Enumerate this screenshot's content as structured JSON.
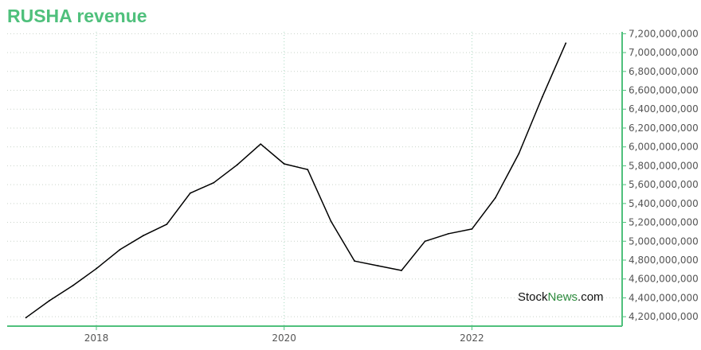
{
  "title": "RUSHA revenue",
  "watermark": {
    "part1": "Stock",
    "part2": "News",
    "part3": ".com"
  },
  "colors": {
    "accent": "#4fc07c",
    "line": "#000000",
    "grid": "#c8d8c8"
  },
  "chart_data": {
    "type": "line",
    "title": "RUSHA revenue",
    "xlabel": "",
    "ylabel": "",
    "grid": true,
    "y_axis_side": "right",
    "xlim": [
      2017.05,
      2023.6
    ],
    "ylim": [
      4100000000,
      7220000000
    ],
    "x_ticks": [
      {
        "value": 2018,
        "label": "2018"
      },
      {
        "value": 2020,
        "label": "2020"
      },
      {
        "value": 2022,
        "label": "2022"
      }
    ],
    "y_ticks": [
      {
        "value": 4200000000,
        "label": "4,200,000,000"
      },
      {
        "value": 4400000000,
        "label": "4,400,000,000"
      },
      {
        "value": 4600000000,
        "label": "4,600,000,000"
      },
      {
        "value": 4800000000,
        "label": "4,800,000,000"
      },
      {
        "value": 5000000000,
        "label": "5,000,000,000"
      },
      {
        "value": 5200000000,
        "label": "5,200,000,000"
      },
      {
        "value": 5400000000,
        "label": "5,400,000,000"
      },
      {
        "value": 5600000000,
        "label": "5,600,000,000"
      },
      {
        "value": 5800000000,
        "label": "5,800,000,000"
      },
      {
        "value": 6000000000,
        "label": "6,000,000,000"
      },
      {
        "value": 6200000000,
        "label": "6,200,000,000"
      },
      {
        "value": 6400000000,
        "label": "6,400,000,000"
      },
      {
        "value": 6600000000,
        "label": "6,600,000,000"
      },
      {
        "value": 6800000000,
        "label": "6,800,000,000"
      },
      {
        "value": 7000000000,
        "label": "7,000,000,000"
      },
      {
        "value": 7200000000,
        "label": "7,200,000,000"
      }
    ],
    "series": [
      {
        "x": [
          2017.25,
          2017.5,
          2017.75,
          2018.0,
          2018.25,
          2018.5,
          2018.75,
          2019.0,
          2019.25,
          2019.5,
          2019.75,
          2020.0,
          2020.25,
          2020.5,
          2020.75,
          2021.0,
          2021.25,
          2021.5,
          2021.75,
          2022.0,
          2022.25,
          2022.5,
          2022.75,
          2023.0
        ],
        "y": [
          4190000000,
          4370000000,
          4530000000,
          4710000000,
          4910000000,
          5060000000,
          5180000000,
          5510000000,
          5620000000,
          5810000000,
          6030000000,
          5820000000,
          5760000000,
          5210000000,
          4790000000,
          4740000000,
          4690000000,
          5000000000,
          5080000000,
          5130000000,
          5460000000,
          5930000000,
          6530000000,
          7100000000
        ]
      }
    ]
  }
}
